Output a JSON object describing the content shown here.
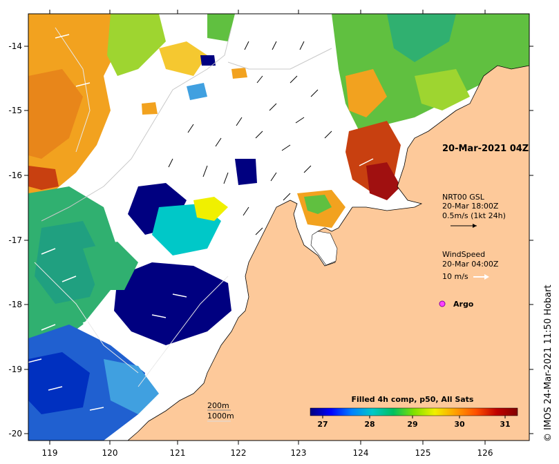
{
  "map": {
    "timestamp": "20-Mar-2021 04Z",
    "currents": {
      "source": "NRT00 GSL",
      "time": "20-Mar 18:00Z",
      "scale": "0.5m/s (1kt 24h)"
    },
    "wind": {
      "label": "WindSpeed",
      "time": "20-Mar 04:00Z",
      "scale": "10 m/s"
    },
    "argo_label": "Argo",
    "bathymetry": {
      "contour_1": "200m",
      "contour_2": "1000m"
    },
    "colorbar": {
      "title": "Filled 4h comp, p50, All Sats",
      "ticks": [
        "27",
        "28",
        "29",
        "30",
        "31"
      ],
      "colors": [
        "#000080",
        "#0000ff",
        "#0080ff",
        "#00c8c8",
        "#00c060",
        "#80e000",
        "#f0f000",
        "#ffa000",
        "#ff5000",
        "#c00000",
        "#800000"
      ]
    },
    "credit": "© IMOS 24-Mar-2021 11:50 Hobart",
    "x_axis": {
      "ticks": [
        "119",
        "120",
        "121",
        "122",
        "123",
        "124",
        "125",
        "126"
      ]
    },
    "y_axis": {
      "ticks": [
        "-14",
        "-15",
        "-16",
        "-17",
        "-18",
        "-19",
        "-20"
      ]
    },
    "colors": {
      "land": "#fdc99a",
      "cloud": "#ffffff",
      "frame": "#000000"
    }
  }
}
